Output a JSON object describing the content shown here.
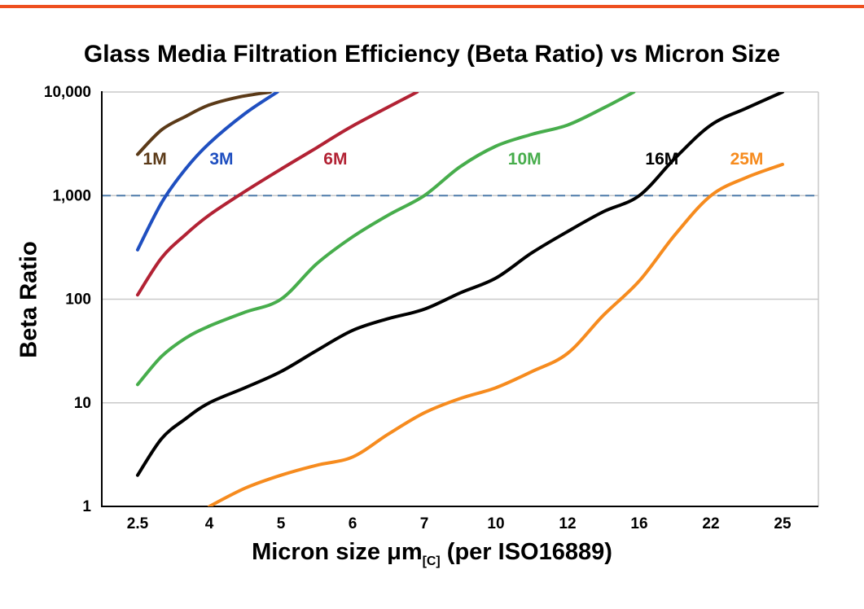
{
  "page": {
    "top_border_color": "#ee4f1f"
  },
  "chart_data": {
    "type": "line",
    "title": "Glass Media Filtration Efficiency (Beta Ratio) vs Micron Size",
    "ylabel": "Beta Ratio",
    "xlabel": "Micron size μm[C] (per ISO16889)",
    "xlabel_parts": {
      "main": "Micron size μm",
      "subscript": "[C]",
      "suffix": " (per ISO16889)"
    },
    "x_scale": "categorical",
    "x_ticks": [
      2.5,
      4,
      5,
      6,
      7,
      10,
      12,
      16,
      22,
      25
    ],
    "x_tick_labels": [
      "2.5",
      "4",
      "5",
      "6",
      "7",
      "10",
      "12",
      "16",
      "22",
      "25"
    ],
    "y_scale": "log",
    "ylim": [
      1,
      10000
    ],
    "y_ticks": [
      1,
      10,
      100,
      1000,
      10000
    ],
    "y_tick_labels": [
      "1",
      "10",
      "100",
      "1,000",
      "10,000"
    ],
    "grid": "horizontal-decades",
    "grid_color": "#c9c9c9",
    "reference_line": {
      "y": 1000,
      "style": "dashed",
      "color": "#4d7aa9"
    },
    "series": [
      {
        "name": "1M",
        "color": "#5b3a18",
        "points": [
          [
            2.5,
            2500
          ],
          [
            3,
            4300
          ],
          [
            3.5,
            5800
          ],
          [
            4,
            7500
          ],
          [
            4.4,
            8900
          ],
          [
            4.85,
            10000
          ]
        ]
      },
      {
        "name": "3M",
        "color": "#1f4fc0",
        "points": [
          [
            2.5,
            300
          ],
          [
            3,
            850
          ],
          [
            3.5,
            1800
          ],
          [
            4,
            3200
          ],
          [
            4.5,
            6200
          ],
          [
            4.95,
            10000
          ]
        ]
      },
      {
        "name": "6M",
        "color": "#b22234",
        "points": [
          [
            2.5,
            110
          ],
          [
            3,
            250
          ],
          [
            3.5,
            420
          ],
          [
            4,
            650
          ],
          [
            4.5,
            1100
          ],
          [
            5,
            1800
          ],
          [
            5.5,
            2900
          ],
          [
            6,
            4700
          ],
          [
            6.9,
            10000
          ]
        ]
      },
      {
        "name": "10M",
        "color": "#47ad4c",
        "points": [
          [
            2.5,
            15
          ],
          [
            3,
            28
          ],
          [
            3.5,
            42
          ],
          [
            4,
            55
          ],
          [
            4.5,
            75
          ],
          [
            5,
            100
          ],
          [
            5.5,
            220
          ],
          [
            6,
            400
          ],
          [
            6.5,
            650
          ],
          [
            7,
            1000
          ],
          [
            8.5,
            1900
          ],
          [
            10,
            3000
          ],
          [
            11,
            3900
          ],
          [
            12,
            4800
          ],
          [
            14,
            7000
          ],
          [
            15.7,
            10000
          ]
        ]
      },
      {
        "name": "16M",
        "color": "#000000",
        "points": [
          [
            2.5,
            2
          ],
          [
            3,
            4.5
          ],
          [
            3.5,
            7
          ],
          [
            4,
            10
          ],
          [
            4.5,
            14
          ],
          [
            5,
            20
          ],
          [
            5.5,
            32
          ],
          [
            6,
            50
          ],
          [
            6.5,
            65
          ],
          [
            7,
            80
          ],
          [
            8.5,
            115
          ],
          [
            10,
            160
          ],
          [
            11,
            280
          ],
          [
            12,
            450
          ],
          [
            14,
            700
          ],
          [
            16,
            1000
          ],
          [
            19,
            2300
          ],
          [
            22,
            4800
          ],
          [
            23.5,
            7000
          ],
          [
            25,
            10000
          ]
        ]
      },
      {
        "name": "25M",
        "color": "#f68b1e",
        "points": [
          [
            4,
            1
          ],
          [
            4.5,
            1.5
          ],
          [
            5,
            2
          ],
          [
            5.5,
            2.5
          ],
          [
            6,
            3
          ],
          [
            6.5,
            5
          ],
          [
            7,
            8
          ],
          [
            8.5,
            11
          ],
          [
            10,
            14
          ],
          [
            11,
            20
          ],
          [
            12,
            30
          ],
          [
            14,
            70
          ],
          [
            16,
            150
          ],
          [
            19,
            420
          ],
          [
            22,
            1000
          ],
          [
            23.5,
            1500
          ],
          [
            25,
            2000
          ]
        ]
      }
    ],
    "series_labels": [
      {
        "text": "1M",
        "x": 2.86,
        "y": 2000,
        "color": "#5b3a18"
      },
      {
        "text": "3M",
        "x": 4.17,
        "y": 2000,
        "color": "#1f4fc0"
      },
      {
        "text": "6M",
        "x": 5.76,
        "y": 2000,
        "color": "#b22234"
      },
      {
        "text": "10M",
        "x": 10.8,
        "y": 2000,
        "color": "#47ad4c"
      },
      {
        "text": "16M",
        "x": 17.9,
        "y": 2000,
        "color": "#000000"
      },
      {
        "text": "25M",
        "x": 23.5,
        "y": 2000,
        "color": "#f68b1e"
      }
    ],
    "legend_position": "inline-labels"
  }
}
